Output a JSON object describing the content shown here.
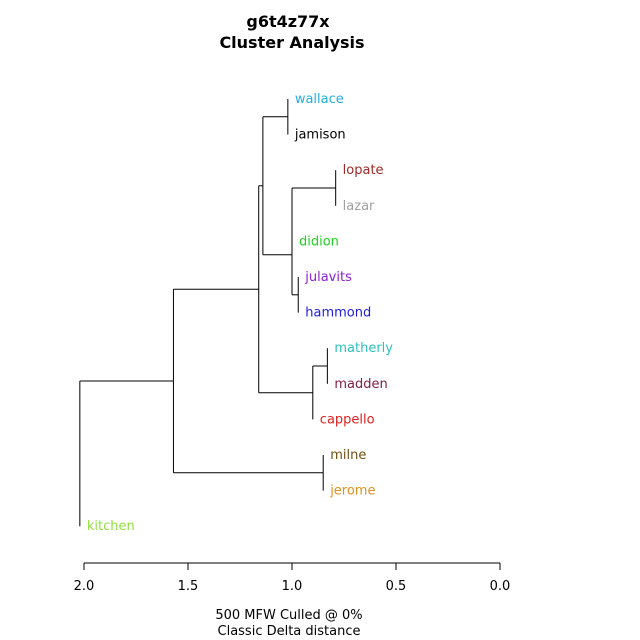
{
  "chart_data": {
    "type": "dendrogram",
    "title": "g6t4z77x",
    "subtitle": "Cluster Analysis",
    "xlabel_line1": "500 MFW  Culled @ 0%",
    "xlabel_line2": "Classic Delta distance",
    "xlim": [
      2.0,
      0.0
    ],
    "ticks": [
      2.0,
      1.5,
      1.0,
      0.5,
      0.0
    ],
    "tick_labels": [
      "2.0",
      "1.5",
      "1.0",
      "0.5",
      "0.0"
    ],
    "leaves": [
      {
        "label": "wallace",
        "color": "#20b0e0"
      },
      {
        "label": "jamison",
        "color": "#000000"
      },
      {
        "label": "lopate",
        "color": "#a02828"
      },
      {
        "label": "lazar",
        "color": "#a0a0a0"
      },
      {
        "label": "didion",
        "color": "#20d020"
      },
      {
        "label": "julavits",
        "color": "#9020d0"
      },
      {
        "label": "hammond",
        "color": "#1c1ce0"
      },
      {
        "label": "matherly",
        "color": "#30c0c0"
      },
      {
        "label": "madden",
        "color": "#802040"
      },
      {
        "label": "cappello",
        "color": "#e02020"
      },
      {
        "label": "milne",
        "color": "#705010"
      },
      {
        "label": "jerome",
        "color": "#e09020"
      },
      {
        "label": "kitchen",
        "color": "#90e040"
      }
    ],
    "leaf_heights": [
      1.02,
      1.02,
      0.79,
      0.79,
      1.0,
      0.97,
      0.97,
      0.83,
      0.83,
      0.9,
      0.85,
      0.85,
      2.02
    ],
    "merges": [
      {
        "id": "m1",
        "left": "L0",
        "right": "L1",
        "height": 1.02
      },
      {
        "id": "m2",
        "left": "L2",
        "right": "L3",
        "height": 0.79
      },
      {
        "id": "m3",
        "left": "m2",
        "right": "L4",
        "height": 1.0
      },
      {
        "id": "m4",
        "left": "L5",
        "right": "L6",
        "height": 0.97
      },
      {
        "id": "m5",
        "left": "m3",
        "right": "m4",
        "height": 1.0
      },
      {
        "id": "m6",
        "left": "m1",
        "right": "m5",
        "height": 1.14
      },
      {
        "id": "m7",
        "left": "L7",
        "right": "L8",
        "height": 0.83
      },
      {
        "id": "m8",
        "left": "m7",
        "right": "L9",
        "height": 0.9
      },
      {
        "id": "m9",
        "left": "m6",
        "right": "m8",
        "height": 1.16
      },
      {
        "id": "m10",
        "left": "L10",
        "right": "L11",
        "height": 0.85
      },
      {
        "id": "m11",
        "left": "m9",
        "right": "m10",
        "height": 1.57
      },
      {
        "id": "m12",
        "left": "m11",
        "right": "L12",
        "height": 2.02
      }
    ]
  }
}
